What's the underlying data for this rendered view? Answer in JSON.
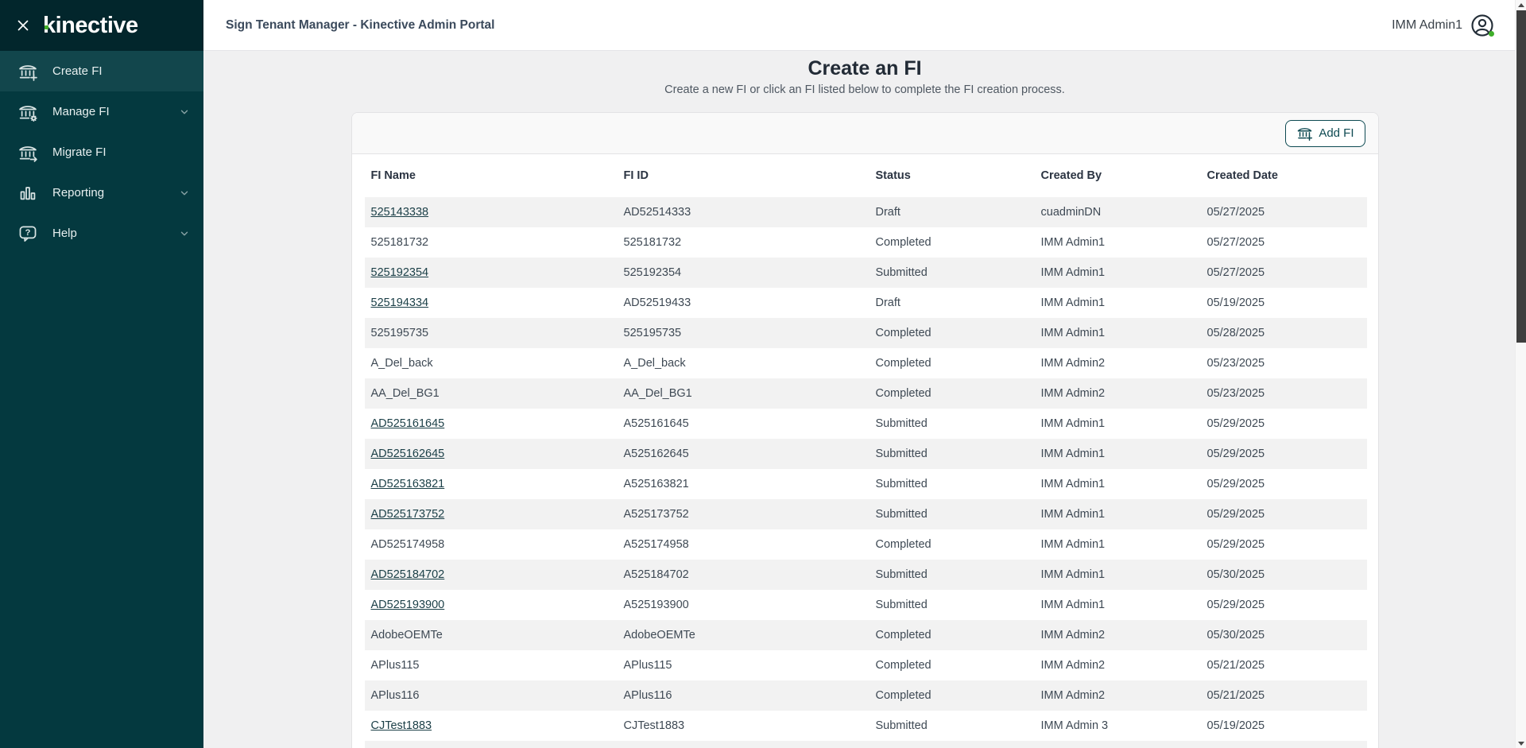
{
  "brand": {
    "logo_text": "kinective",
    "accent_green": "#43b02a",
    "sidebar_bg": "#04393f",
    "sidebar_active_bg": "#12464c",
    "primary_teal": "#0e4a52"
  },
  "topbar": {
    "title": "Sign Tenant Manager - Kinective Admin Portal",
    "user": "IMM Admin1"
  },
  "sidebar": {
    "items": [
      {
        "label": "Create FI",
        "icon": "bank-plus-icon",
        "active": true,
        "expandable": false
      },
      {
        "label": "Manage FI",
        "icon": "bank-gear-icon",
        "active": false,
        "expandable": true
      },
      {
        "label": "Migrate FI",
        "icon": "bank-arrow-icon",
        "active": false,
        "expandable": false
      },
      {
        "label": "Reporting",
        "icon": "bar-chart-icon",
        "active": false,
        "expandable": true
      },
      {
        "label": "Help",
        "icon": "help-bubble-icon",
        "active": false,
        "expandable": true
      }
    ]
  },
  "page": {
    "title": "Create an FI",
    "subtitle": "Create a new FI or click an FI listed below to complete the FI creation process.",
    "add_button_label": "Add FI"
  },
  "table": {
    "columns": [
      "FI Name",
      "FI ID",
      "Status",
      "Created By",
      "Created Date"
    ],
    "rows": [
      {
        "fi_name": "525143338",
        "link": true,
        "fi_id": "AD52514333",
        "status": "Draft",
        "created_by": "cuadminDN",
        "created_date": "05/27/2025"
      },
      {
        "fi_name": "525181732",
        "link": false,
        "fi_id": "525181732",
        "status": "Completed",
        "created_by": "IMM Admin1",
        "created_date": "05/27/2025"
      },
      {
        "fi_name": "525192354",
        "link": true,
        "fi_id": "525192354",
        "status": "Submitted",
        "created_by": "IMM Admin1",
        "created_date": "05/27/2025"
      },
      {
        "fi_name": "525194334",
        "link": true,
        "fi_id": "AD52519433",
        "status": "Draft",
        "created_by": "IMM Admin1",
        "created_date": "05/19/2025"
      },
      {
        "fi_name": "525195735",
        "link": false,
        "fi_id": "525195735",
        "status": "Completed",
        "created_by": "IMM Admin1",
        "created_date": "05/28/2025"
      },
      {
        "fi_name": "A_Del_back",
        "link": false,
        "fi_id": "A_Del_back",
        "status": "Completed",
        "created_by": "IMM Admin2",
        "created_date": "05/23/2025"
      },
      {
        "fi_name": "AA_Del_BG1",
        "link": false,
        "fi_id": "AA_Del_BG1",
        "status": "Completed",
        "created_by": "IMM Admin2",
        "created_date": "05/23/2025"
      },
      {
        "fi_name": "AD525161645",
        "link": true,
        "fi_id": "A525161645",
        "status": "Submitted",
        "created_by": "IMM Admin1",
        "created_date": "05/29/2025"
      },
      {
        "fi_name": "AD525162645",
        "link": true,
        "fi_id": "A525162645",
        "status": "Submitted",
        "created_by": "IMM Admin1",
        "created_date": "05/29/2025"
      },
      {
        "fi_name": "AD525163821",
        "link": true,
        "fi_id": "A525163821",
        "status": "Submitted",
        "created_by": "IMM Admin1",
        "created_date": "05/29/2025"
      },
      {
        "fi_name": "AD525173752",
        "link": true,
        "fi_id": "A525173752",
        "status": "Submitted",
        "created_by": "IMM Admin1",
        "created_date": "05/29/2025"
      },
      {
        "fi_name": "AD525174958",
        "link": false,
        "fi_id": "A525174958",
        "status": "Completed",
        "created_by": "IMM Admin1",
        "created_date": "05/29/2025"
      },
      {
        "fi_name": "AD525184702",
        "link": true,
        "fi_id": "A525184702",
        "status": "Submitted",
        "created_by": "IMM Admin1",
        "created_date": "05/30/2025"
      },
      {
        "fi_name": "AD525193900",
        "link": true,
        "fi_id": "A525193900",
        "status": "Submitted",
        "created_by": "IMM Admin1",
        "created_date": "05/29/2025"
      },
      {
        "fi_name": "AdobeOEMTe",
        "link": false,
        "fi_id": "AdobeOEMTe",
        "status": "Completed",
        "created_by": "IMM Admin2",
        "created_date": "05/30/2025"
      },
      {
        "fi_name": "APlus115",
        "link": false,
        "fi_id": "APlus115",
        "status": "Completed",
        "created_by": "IMM Admin2",
        "created_date": "05/21/2025"
      },
      {
        "fi_name": "APlus116",
        "link": false,
        "fi_id": "APlus116",
        "status": "Completed",
        "created_by": "IMM Admin2",
        "created_date": "05/21/2025"
      },
      {
        "fi_name": "CJTest1883",
        "link": true,
        "fi_id": "CJTest1883",
        "status": "Submitted",
        "created_by": "IMM Admin 3",
        "created_date": "05/19/2025"
      }
    ],
    "partial_next_row": true
  },
  "icons": {
    "close-icon": "x",
    "bank-plus-icon": "bank building with plus",
    "bank-gear-icon": "bank building with gear",
    "bank-arrow-icon": "bank building with arrow",
    "bar-chart-icon": "three vertical bars",
    "help-bubble-icon": "speech bubble with question mark",
    "chevron-down-icon": "v",
    "user-avatar-icon": "person in circle with green status dot"
  }
}
